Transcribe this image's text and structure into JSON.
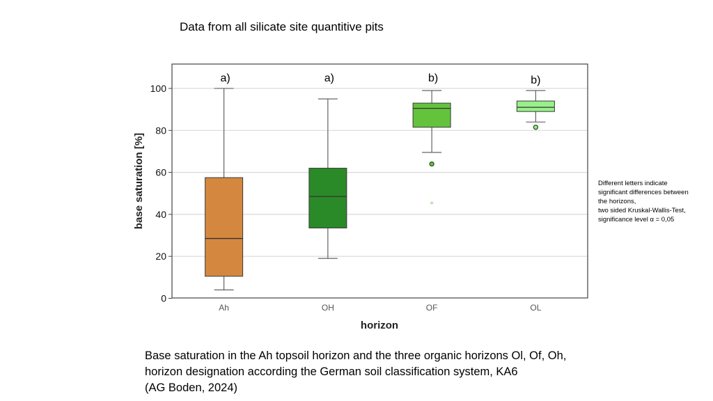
{
  "title": "Data from all silicate site quantitive pits",
  "chart_data": {
    "type": "box",
    "title": "",
    "xlabel": "horizon",
    "ylabel": "base saturation [%]",
    "ylim": [
      0,
      110
    ],
    "yticks": [
      0,
      20,
      40,
      60,
      80,
      100
    ],
    "grid": "horizontal",
    "categories": [
      "Ah",
      "OH",
      "OF",
      "OL"
    ],
    "series": [
      {
        "name": "Ah",
        "min": 4,
        "q1": 10.5,
        "median": 28.5,
        "q3": 57.5,
        "max": 100,
        "outliers": [],
        "extremes": [],
        "color": "#d4883f",
        "letter": "a)"
      },
      {
        "name": "OH",
        "min": 19,
        "q1": 33.5,
        "median": 48.5,
        "q3": 62,
        "max": 95,
        "outliers": [],
        "extremes": [],
        "color": "#2a8a27",
        "letter": "a)"
      },
      {
        "name": "OF",
        "min": 69.5,
        "q1": 81.5,
        "median": 90.5,
        "q3": 93,
        "max": 99,
        "outliers": [
          64
        ],
        "extremes": [
          45
        ],
        "color": "#63c33d",
        "letter": "b)"
      },
      {
        "name": "OL",
        "min": 84,
        "q1": 89,
        "median": 91,
        "q3": 94,
        "max": 99,
        "outliers": [
          81.5
        ],
        "extremes": [],
        "color": "#98f08a",
        "letter": "b)"
      }
    ]
  },
  "note": {
    "lines": [
      "Different letters indicate",
      "significant differences between",
      "the horizons,",
      "two sided Kruskal-Wallis-Test,",
      "significance level α = 0,05"
    ]
  },
  "caption": {
    "lines": [
      "Base saturation in the Ah topsoil horizon and the three organic horizons Ol, Of, Oh,",
      "horizon designation according the German soil classification system, KA6",
      "(AG Boden, 2024)"
    ]
  }
}
